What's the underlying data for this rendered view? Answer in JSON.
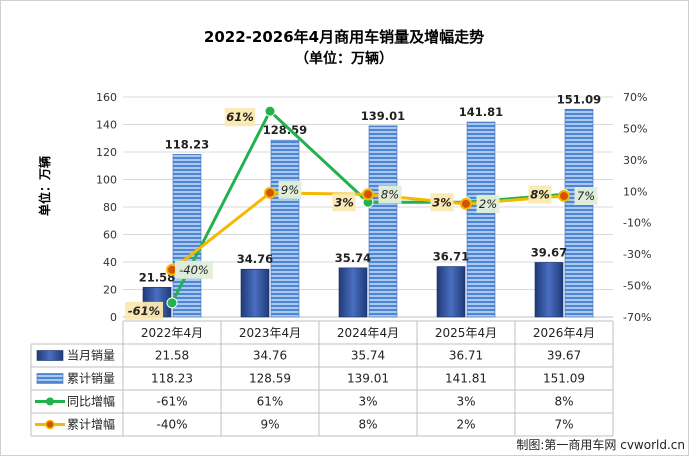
{
  "title": "2022-2026年4月商用车销量及增幅走势",
  "subtitle": "（单位：万辆）",
  "ylabel_left": "单位：万辆",
  "credit": "制图:第一商用车网 cvworld.cn",
  "chart_data": {
    "type": "bar",
    "categories": [
      "2022年4月",
      "2023年4月",
      "2024年4月",
      "2025年4月",
      "2026年4月"
    ],
    "y_left": {
      "min": 0,
      "max": 160,
      "step": 20,
      "ticks": [
        "0",
        "20",
        "40",
        "60",
        "80",
        "100",
        "120",
        "140",
        "160"
      ]
    },
    "y_right": {
      "min": -70,
      "max": 70,
      "step": 20,
      "ticks": [
        "-70%",
        "-50%",
        "-30%",
        "-10%",
        "10%",
        "30%",
        "50%",
        "70%"
      ]
    },
    "bars": [
      {
        "name": "当月销量",
        "axis": "left",
        "values": [
          21.58,
          34.76,
          35.74,
          36.71,
          39.67
        ],
        "labels": [
          "21.58",
          "34.76",
          "35.74",
          "36.71",
          "39.67"
        ],
        "table": [
          "21.58",
          "34.76",
          "35.74",
          "36.71",
          "39.67"
        ],
        "color": "#2e4a8c"
      },
      {
        "name": "累计销量",
        "axis": "left",
        "values": [
          118.23,
          128.59,
          139.01,
          141.81,
          151.09
        ],
        "labels": [
          "118.23",
          "128.59",
          "139.01",
          "141.81",
          "151.09"
        ],
        "table": [
          "118.23",
          "128.59",
          "139.01",
          "141.81",
          "151.09"
        ],
        "color": "#5b8fd6"
      }
    ],
    "lines": [
      {
        "name": "同比增幅",
        "axis": "right",
        "values": [
          -61,
          61,
          3,
          3,
          8
        ],
        "labels": [
          "-61%",
          "61%",
          "3%",
          "3%",
          "8%"
        ],
        "table": [
          "-61%",
          "61%",
          "3%",
          "3%",
          "8%"
        ],
        "color": "#22b14c",
        "label_bg": "#fce9b0"
      },
      {
        "name": "累计增幅",
        "axis": "right",
        "values": [
          -40,
          9,
          8,
          2,
          7
        ],
        "labels": [
          "-40%",
          "9%",
          "8%",
          "2%",
          "7%"
        ],
        "table": [
          "-40%",
          "9%",
          "8%",
          "2%",
          "7%"
        ],
        "color": "#f5b800",
        "label_bg": "#e4efda"
      }
    ],
    "grid": true,
    "legend": "data-table"
  }
}
